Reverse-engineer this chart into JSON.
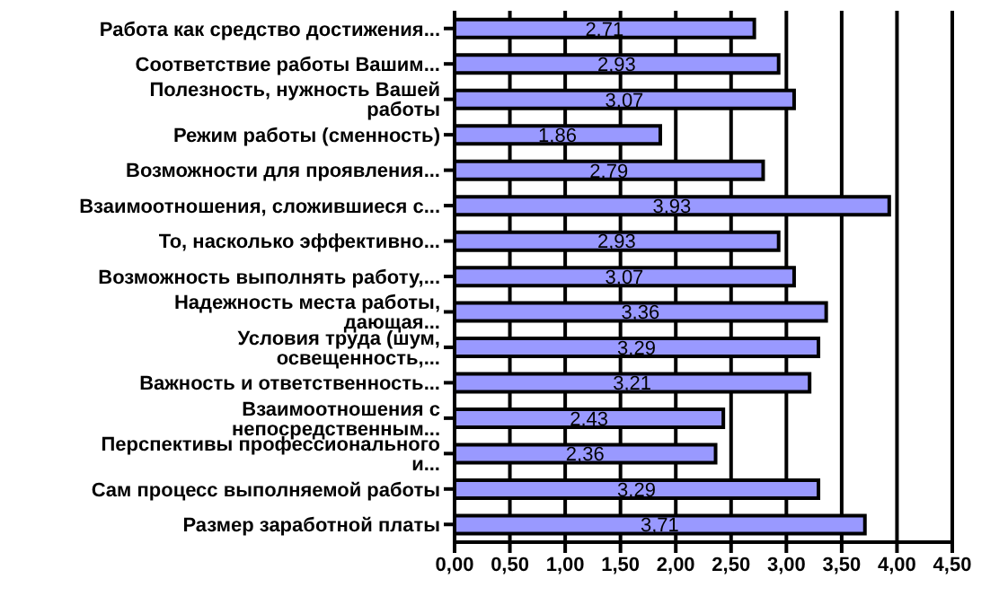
{
  "chart_data": {
    "type": "bar",
    "orientation": "horizontal",
    "categories": [
      "Работа как средство достижения...",
      "Соответствие работы Вашим...",
      "Полезность, нужность Вашей работы",
      "Режим работы (сменность)",
      "Возможности для проявления...",
      "Взаимоотношения, сложившиеся с...",
      "То, насколько эффективно...",
      "Возможность выполнять работу,...",
      "Надежность места работы, дающая...",
      "Условия труда (шум, освещенность,...",
      "Важность и ответственность...",
      "Взаимоотношения с непосредственным...",
      "Перспективы профессионального и...",
      "Сам процесс выполняемой работы",
      "Размер заработной платы"
    ],
    "values": [
      2.71,
      2.93,
      3.07,
      1.86,
      2.79,
      3.93,
      2.93,
      3.07,
      3.36,
      3.29,
      3.21,
      2.43,
      2.36,
      3.29,
      3.71
    ],
    "value_labels": [
      "2,71",
      "2,93",
      "3,07",
      "1,86",
      "2,79",
      "3,93",
      "2,93",
      "3,07",
      "3,36",
      "3,29",
      "3,21",
      "2,43",
      "2,36",
      "3,29",
      "3,71"
    ],
    "color": "#9999ff",
    "xlim": [
      0,
      4.5
    ],
    "xticks": [
      {
        "value": 0,
        "label": "0,00"
      },
      {
        "value": 0.5,
        "label": "0,50"
      },
      {
        "value": 1,
        "label": "1,00"
      },
      {
        "value": 1.5,
        "label": "1,50"
      },
      {
        "value": 2,
        "label": "2,00"
      },
      {
        "value": 2.5,
        "label": "2,50"
      },
      {
        "value": 3,
        "label": "3,00"
      },
      {
        "value": 3.5,
        "label": "3,50"
      },
      {
        "value": 4,
        "label": "4,00"
      },
      {
        "value": 4.5,
        "label": "4,50"
      }
    ],
    "grid": "x"
  }
}
